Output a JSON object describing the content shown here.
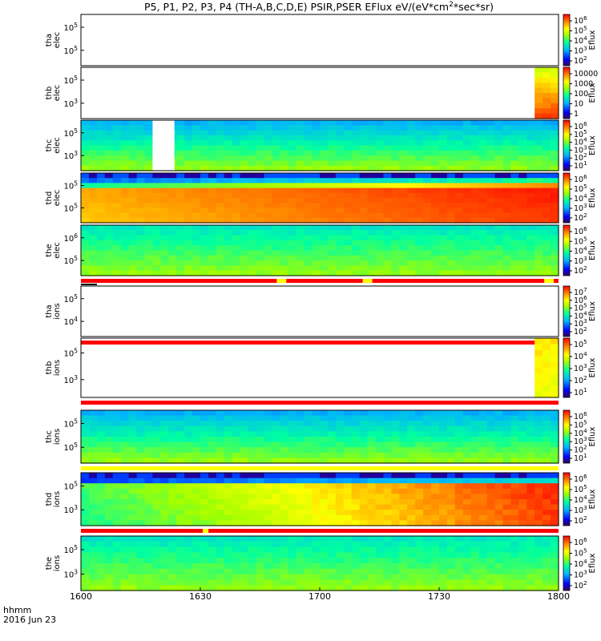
{
  "title": "P5, P1, P2, P3, P4 (TH-A,B,C,D,E) PSIR,PSER EFlux eV/(eV*cm",
  "title_sup": "2",
  "title_end": "*sec*sr)",
  "time_label_1": "hhmm",
  "time_label_2": "2016 Jun 23",
  "x_ticks": [
    "1600",
    "1630",
    "1700",
    "1730",
    "1800"
  ],
  "colorbar_unit": "Eflux",
  "chart_data": {
    "type": "heatmap",
    "x_range": [
      "16:00",
      "18:00"
    ],
    "panels": [
      {
        "label": [
          "tha",
          "elec"
        ],
        "y_ticks": [
          {
            "base": "10",
            "exp": "5"
          },
          {
            "base": "10",
            "exp": "5"
          }
        ],
        "cb_ticks": [
          {
            "base": "10",
            "exp": "6"
          },
          {
            "base": "10",
            "exp": "5"
          },
          {
            "base": "10",
            "exp": "4"
          },
          {
            "base": "10",
            "exp": "3"
          },
          {
            "base": "10",
            "exp": "2"
          }
        ],
        "data": "none",
        "status": null
      },
      {
        "label": [
          "thb",
          "elec"
        ],
        "y_ticks": [
          {
            "base": "10",
            "exp": "5"
          },
          {
            "base": "10",
            "exp": "3"
          }
        ],
        "cb_ticks": [
          {
            "base": "10000",
            "exp": ""
          },
          {
            "base": "1000",
            "exp": ""
          },
          {
            "base": "100",
            "exp": ""
          },
          {
            "base": "10",
            "exp": ""
          },
          {
            "base": "1",
            "exp": ""
          }
        ],
        "data": "end",
        "status": null
      },
      {
        "label": [
          "thc",
          "elec"
        ],
        "y_ticks": [
          {
            "base": "10",
            "exp": "5"
          },
          {
            "base": "10",
            "exp": "3"
          }
        ],
        "cb_ticks": [
          {
            "base": "10",
            "exp": "6"
          },
          {
            "base": "10",
            "exp": "5"
          },
          {
            "base": "10",
            "exp": "4"
          },
          {
            "base": "10",
            "exp": "3"
          },
          {
            "base": "10",
            "exp": "2"
          },
          {
            "base": "10",
            "exp": "1"
          }
        ],
        "data": "full-blue",
        "gap": [
          "16:18",
          "16:23"
        ],
        "status": null
      },
      {
        "label": [
          "thd",
          "elec"
        ],
        "y_ticks": [
          {
            "base": "10",
            "exp": "5"
          },
          {
            "base": "10",
            "exp": "5"
          }
        ],
        "cb_ticks": [
          {
            "base": "10",
            "exp": "6"
          },
          {
            "base": "10",
            "exp": "5"
          },
          {
            "base": "10",
            "exp": "4"
          },
          {
            "base": "10",
            "exp": "3"
          },
          {
            "base": "10",
            "exp": "2"
          }
        ],
        "data": "intense",
        "status": null
      },
      {
        "label": [
          "the",
          "elec"
        ],
        "y_ticks": [
          {
            "base": "10",
            "exp": "6"
          },
          {
            "base": "10",
            "exp": "5"
          }
        ],
        "cb_ticks": [
          {
            "base": "10",
            "exp": "6"
          },
          {
            "base": "10",
            "exp": "5"
          },
          {
            "base": "10",
            "exp": "4"
          },
          {
            "base": "10",
            "exp": "3"
          },
          {
            "base": "10",
            "exp": "2"
          }
        ],
        "data": "full-green",
        "status": "red-yellow"
      },
      {
        "label": [
          "tha",
          "ions"
        ],
        "y_ticks": [
          {
            "base": "10",
            "exp": "5"
          },
          {
            "base": "10",
            "exp": "4"
          }
        ],
        "cb_ticks": [
          {
            "base": "10",
            "exp": "7"
          },
          {
            "base": "10",
            "exp": "6"
          },
          {
            "base": "10",
            "exp": "5"
          },
          {
            "base": "10",
            "exp": "4"
          },
          {
            "base": "10",
            "exp": "3"
          },
          {
            "base": "10",
            "exp": "2"
          }
        ],
        "data": "none",
        "status": "red"
      },
      {
        "label": [
          "thb",
          "ions"
        ],
        "y_ticks": [
          {
            "base": "10",
            "exp": "5"
          },
          {
            "base": "10",
            "exp": "3"
          }
        ],
        "cb_ticks": [
          {
            "base": "10",
            "exp": "5"
          },
          {
            "base": "10",
            "exp": "4"
          },
          {
            "base": "10",
            "exp": "3"
          },
          {
            "base": "10",
            "exp": "2"
          },
          {
            "base": "10",
            "exp": "1"
          }
        ],
        "data": "end-yellow",
        "status": "red"
      },
      {
        "label": [
          "thc",
          "ions"
        ],
        "y_ticks": [
          {
            "base": "10",
            "exp": "5"
          },
          {
            "base": "10",
            "exp": "5"
          }
        ],
        "cb_ticks": [
          {
            "base": "10",
            "exp": "6"
          },
          {
            "base": "10",
            "exp": "5"
          },
          {
            "base": "10",
            "exp": "4"
          },
          {
            "base": "10",
            "exp": "3"
          },
          {
            "base": "10",
            "exp": "2"
          },
          {
            "base": "10",
            "exp": "1"
          }
        ],
        "data": "full-blue",
        "status": "yellow"
      },
      {
        "label": [
          "thd",
          "ions"
        ],
        "y_ticks": [
          {
            "base": "10",
            "exp": "5"
          },
          {
            "base": "10",
            "exp": "3"
          }
        ],
        "cb_ticks": [
          {
            "base": "10",
            "exp": "6"
          },
          {
            "base": "10",
            "exp": "5"
          },
          {
            "base": "10",
            "exp": "4"
          },
          {
            "base": "10",
            "exp": "3"
          },
          {
            "base": "10",
            "exp": "2"
          }
        ],
        "data": "intense-ion",
        "status": "red-yellow-one"
      },
      {
        "label": [
          "the",
          "ions"
        ],
        "y_ticks": [
          {
            "base": "10",
            "exp": "5"
          },
          {
            "base": "10",
            "exp": "3"
          }
        ],
        "cb_ticks": [
          {
            "base": "10",
            "exp": "6"
          },
          {
            "base": "10",
            "exp": "5"
          },
          {
            "base": "10",
            "exp": "4"
          },
          {
            "base": "10",
            "exp": "3"
          },
          {
            "base": "10",
            "exp": "2"
          }
        ],
        "data": "full-green",
        "status": null
      }
    ]
  }
}
